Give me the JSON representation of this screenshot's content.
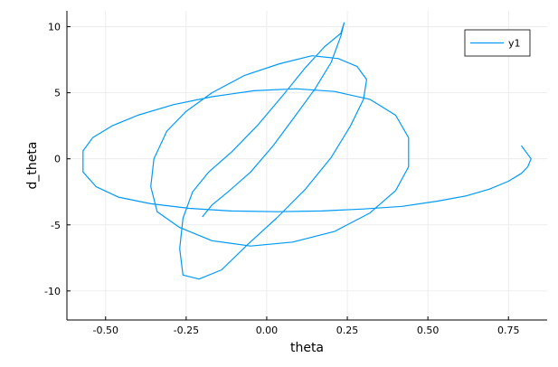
{
  "chart_data": {
    "type": "line",
    "title": "",
    "xlabel": "theta",
    "ylabel": "d_theta",
    "xlim": [
      -0.62,
      0.87
    ],
    "ylim": [
      -12.2,
      11.2
    ],
    "xticks": [
      -0.5,
      -0.25,
      0.0,
      0.25,
      0.5,
      0.75
    ],
    "xtick_labels": [
      "-0.50",
      "-0.25",
      "0.00",
      "0.25",
      "0.50",
      "0.75"
    ],
    "yticks": [
      -10,
      -5,
      0,
      5,
      10
    ],
    "ytick_labels": [
      "-10",
      "-5",
      "0",
      "5",
      "10"
    ],
    "grid": true,
    "legend": {
      "position": "top-right",
      "entries": [
        "y1"
      ]
    },
    "colors": {
      "series": "#009af9",
      "grid": "#e8e8e8",
      "axis": "#000000"
    },
    "series": [
      {
        "name": "y1",
        "x": [
          0.79,
          0.82,
          0.81,
          0.79,
          0.75,
          0.69,
          0.62,
          0.53,
          0.42,
          0.3,
          0.17,
          0.03,
          -0.11,
          -0.24,
          -0.36,
          -0.46,
          -0.53,
          -0.57,
          -0.57,
          -0.54,
          -0.48,
          -0.4,
          -0.29,
          -0.17,
          -0.04,
          0.09,
          0.21,
          0.32,
          0.4,
          0.44,
          0.44,
          0.4,
          0.32,
          0.21,
          0.08,
          -0.05,
          -0.17,
          -0.27,
          -0.34,
          -0.36,
          -0.35,
          -0.31,
          -0.25,
          -0.17,
          -0.07,
          0.04,
          0.14,
          0.22,
          0.28,
          0.31,
          0.3,
          0.26,
          0.2,
          0.12,
          0.03,
          -0.06,
          -0.14,
          -0.21,
          -0.26,
          -0.27,
          -0.26,
          -0.23,
          -0.18,
          -0.11,
          -0.03,
          0.05,
          0.12,
          0.18,
          0.23,
          0.24,
          0.23,
          0.2,
          0.15,
          0.09,
          0.02,
          -0.05,
          -0.12,
          -0.17,
          -0.2
        ],
        "y": [
          1.0,
          0.0,
          -0.6,
          -1.1,
          -1.7,
          -2.3,
          -2.8,
          -3.2,
          -3.6,
          -3.8,
          -3.95,
          -4.0,
          -3.95,
          -3.75,
          -3.4,
          -2.9,
          -2.1,
          -1.0,
          0.6,
          1.6,
          2.5,
          3.3,
          4.1,
          4.7,
          5.15,
          5.3,
          5.1,
          4.5,
          3.3,
          1.6,
          -0.6,
          -2.4,
          -4.1,
          -5.5,
          -6.3,
          -6.6,
          -6.2,
          -5.2,
          -4.0,
          -2.1,
          0.0,
          2.1,
          3.6,
          5.0,
          6.3,
          7.2,
          7.8,
          7.6,
          7.0,
          6.0,
          4.5,
          2.5,
          0.1,
          -2.3,
          -4.5,
          -6.5,
          -8.4,
          -9.1,
          -8.8,
          -6.8,
          -4.5,
          -2.5,
          -1.0,
          0.5,
          2.5,
          4.8,
          6.9,
          8.5,
          9.5,
          10.3,
          9.3,
          7.3,
          5.3,
          3.3,
          1.0,
          -1.0,
          -2.5,
          -3.5,
          -4.4
        ]
      }
    ]
  }
}
